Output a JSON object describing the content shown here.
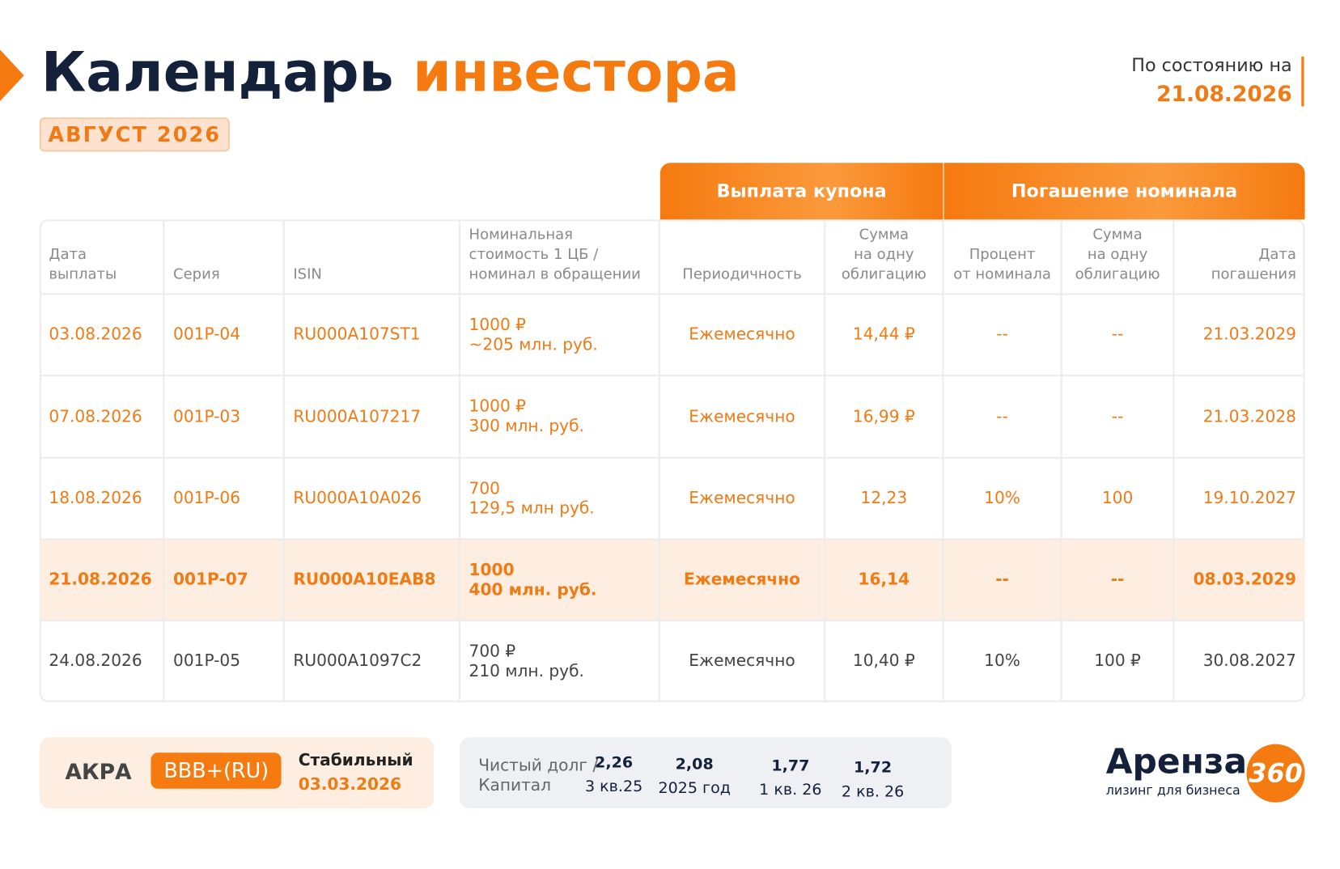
{
  "header": {
    "title_main": "Календарь",
    "title_accent": "инвестора",
    "period": "АВГУСТ 2026",
    "as_of_label": "По состоянию на",
    "as_of_date": "21.08.2026"
  },
  "table": {
    "group_headers": [
      "Выплата купона",
      "Погашение номинала"
    ],
    "columns": [
      [
        "Дата",
        "выплаты"
      ],
      [
        "Серия"
      ],
      [
        "ISIN"
      ],
      [
        "Номинальная",
        "стоимость 1 ЦБ /",
        "номинал в обращении"
      ],
      [
        "Периодичность"
      ],
      [
        "Сумма",
        "на одну",
        "облигацию"
      ],
      [
        "Процент",
        "от номинала"
      ],
      [
        "Сумма",
        "на одну",
        "облигацию"
      ],
      [
        "Дата",
        "погашения"
      ]
    ],
    "rows": [
      [
        "03.08.2026",
        "001P-04",
        "RU000A107ST1",
        [
          "1000 ₽",
          "~205 млн. руб."
        ],
        "Ежемесячно",
        "14,44 ₽",
        "--",
        "--",
        "21.03.2029"
      ],
      [
        "07.08.2026",
        "001P-03",
        "RU000A107217",
        [
          "1000 ₽",
          "300 млн. руб."
        ],
        "Ежемесячно",
        "16,99 ₽",
        "--",
        "--",
        "21.03.2028"
      ],
      [
        "18.08.2026",
        "001P-06",
        "RU000A10A026",
        [
          "700",
          "129,5 млн руб."
        ],
        "Ежемесячно",
        "12,23",
        "10%",
        "100",
        "19.10.2027"
      ],
      [
        "21.08.2026",
        "001P-07",
        "RU000A10EAB8",
        [
          "1000",
          "400 млн. руб."
        ],
        "Ежемесячно",
        "16,14",
        "--",
        "--",
        "08.03.2029"
      ],
      [
        "24.08.2026",
        "001P-05",
        "RU000A1097C2",
        [
          "700 ₽",
          "210 млн. руб."
        ],
        "Ежемесячно",
        "10,40 ₽",
        "10%",
        "100 ₽",
        "30.08.2027"
      ]
    ]
  },
  "rating": {
    "agency": "АКРА",
    "grade": "BBB+(RU)",
    "outlook": "Стабильный",
    "date": "03.03.2026"
  },
  "debt": {
    "label": [
      "Чистый долг /",
      "Капитал"
    ],
    "items": [
      {
        "value": "2,26",
        "period": "3 кв.25"
      },
      {
        "value": "2,08",
        "period": "2025 год"
      },
      {
        "value": "1,77",
        "period": "1 кв. 26"
      },
      {
        "value": "1,72",
        "period": "2 кв. 26"
      }
    ]
  },
  "logo": {
    "name": "Аренза",
    "badge": "360",
    "tagline": "лизинг для бизнеса"
  }
}
